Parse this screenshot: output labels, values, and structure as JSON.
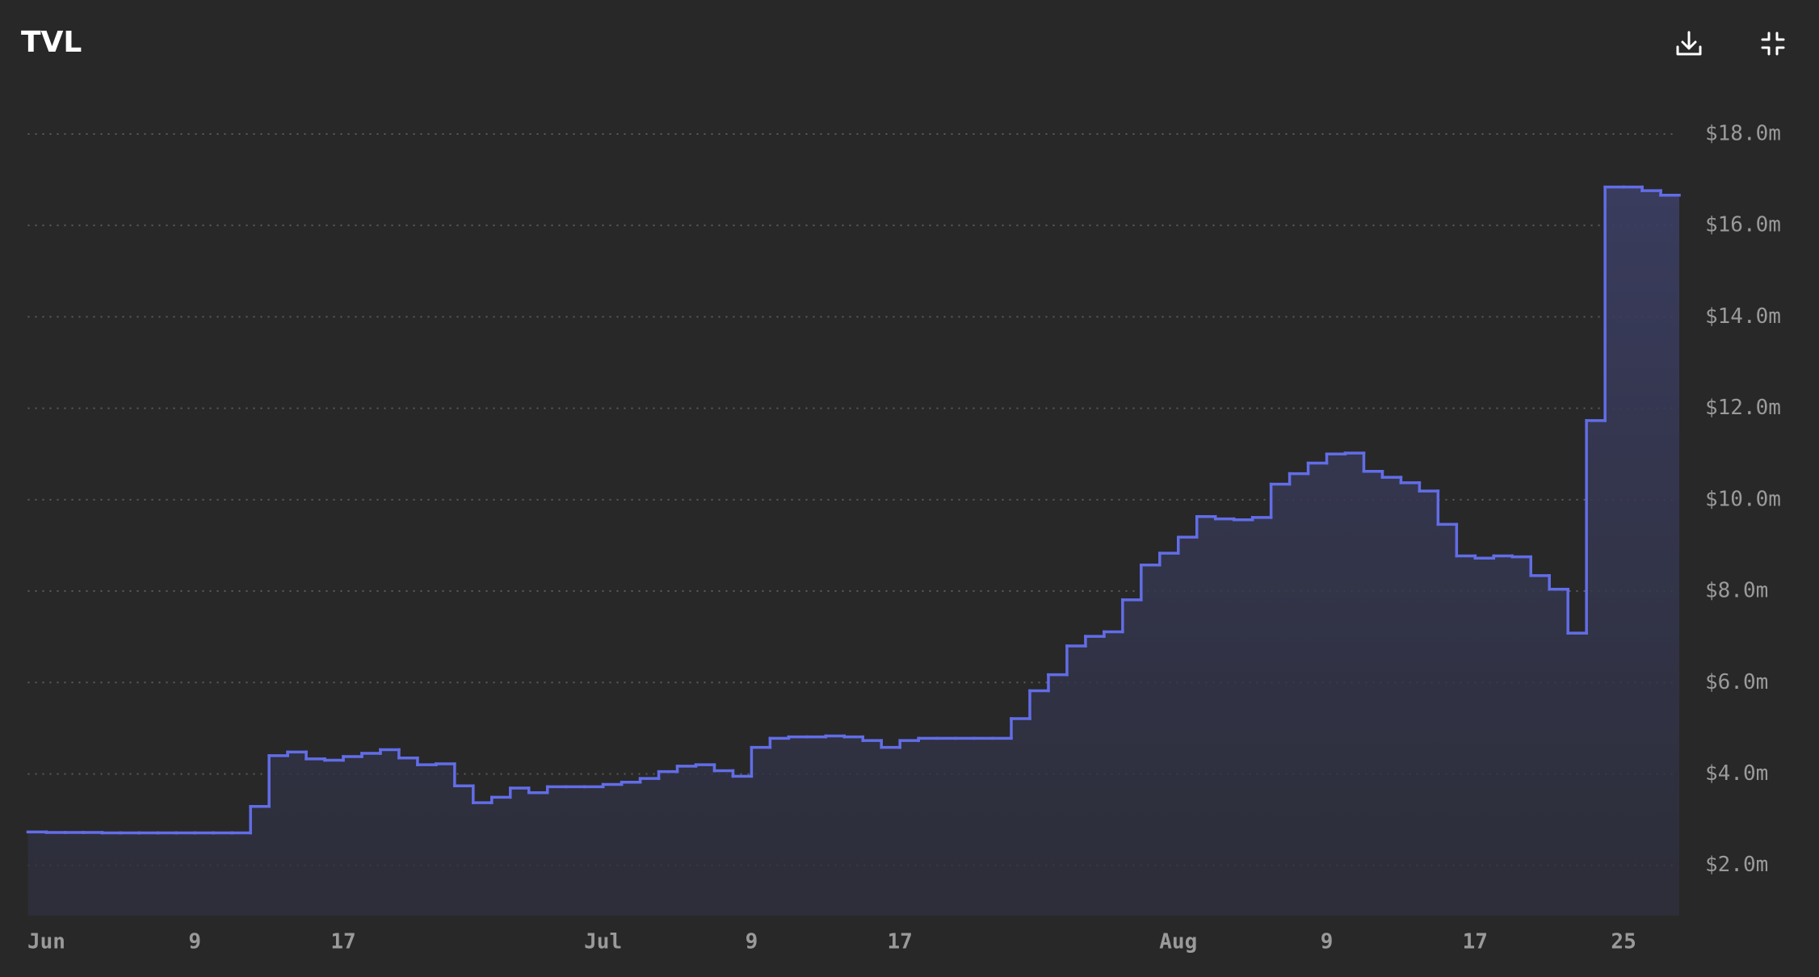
{
  "chart_data": {
    "type": "line",
    "step": "after",
    "title": "TVL",
    "color": "#626de6",
    "grid": true,
    "x": [
      "05-31",
      "06-01",
      "06-02",
      "06-03",
      "06-04",
      "06-05",
      "06-06",
      "06-07",
      "06-08",
      "06-09",
      "06-10",
      "06-11",
      "06-12",
      "06-13",
      "06-14",
      "06-15",
      "06-16",
      "06-17",
      "06-18",
      "06-19",
      "06-20",
      "06-21",
      "06-22",
      "06-23",
      "06-24",
      "06-25",
      "06-26",
      "06-27",
      "06-28",
      "06-29",
      "06-30",
      "07-01",
      "07-02",
      "07-03",
      "07-04",
      "07-05",
      "07-06",
      "07-07",
      "07-08",
      "07-09",
      "07-10",
      "07-11",
      "07-12",
      "07-13",
      "07-14",
      "07-15",
      "07-16",
      "07-17",
      "07-18",
      "07-19",
      "07-20",
      "07-21",
      "07-22",
      "07-23",
      "07-24",
      "07-25",
      "07-26",
      "07-27",
      "07-28",
      "07-29",
      "07-30",
      "07-31",
      "08-01",
      "08-02",
      "08-03",
      "08-04",
      "08-05",
      "08-06",
      "08-07",
      "08-08",
      "08-09",
      "08-10",
      "08-11",
      "08-12",
      "08-13",
      "08-14",
      "08-15",
      "08-16",
      "08-17",
      "08-18",
      "08-19",
      "08-20",
      "08-21",
      "08-22",
      "08-23",
      "08-24",
      "08-25",
      "08-26",
      "08-27"
    ],
    "values": [
      2.73,
      2.72,
      2.72,
      2.72,
      2.71,
      2.71,
      2.71,
      2.71,
      2.71,
      2.71,
      2.71,
      2.71,
      3.29,
      4.4,
      4.48,
      4.33,
      4.3,
      4.38,
      4.45,
      4.53,
      4.35,
      4.2,
      4.22,
      3.74,
      3.37,
      3.49,
      3.69,
      3.59,
      3.72,
      3.72,
      3.72,
      3.77,
      3.82,
      3.9,
      4.05,
      4.17,
      4.2,
      4.07,
      3.95,
      4.58,
      4.78,
      4.81,
      4.81,
      4.83,
      4.81,
      4.73,
      4.58,
      4.73,
      4.78,
      4.78,
      4.78,
      4.78,
      4.78,
      5.21,
      5.82,
      6.17,
      6.8,
      7.01,
      7.11,
      7.81,
      8.57,
      8.83,
      9.18,
      9.63,
      9.58,
      9.56,
      9.61,
      10.34,
      10.57,
      10.8,
      11.0,
      11.02,
      10.62,
      10.49,
      10.37,
      10.19,
      9.46,
      8.77,
      8.72,
      8.77,
      8.75,
      8.34,
      8.04,
      7.08,
      11.73,
      16.84,
      16.84,
      16.76,
      16.66
    ],
    "xlim": [
      "05-31",
      "08-28"
    ],
    "xticks": [
      {
        "value": "06-01",
        "label": "Jun"
      },
      {
        "value": "06-09",
        "label": "9"
      },
      {
        "value": "06-17",
        "label": "17"
      },
      {
        "value": "07-01",
        "label": "Jul"
      },
      {
        "value": "07-09",
        "label": "9"
      },
      {
        "value": "07-17",
        "label": "17"
      },
      {
        "value": "08-01",
        "label": "Aug"
      },
      {
        "value": "08-09",
        "label": "9"
      },
      {
        "value": "08-17",
        "label": "17"
      },
      {
        "value": "08-25",
        "label": "25"
      }
    ],
    "ylim": [
      0.9,
      18.9
    ],
    "yticks": [
      {
        "value": 2,
        "label": "$2.0m"
      },
      {
        "value": 4,
        "label": "$4.0m"
      },
      {
        "value": 6,
        "label": "$6.0m"
      },
      {
        "value": 8,
        "label": "$8.0m"
      },
      {
        "value": 10,
        "label": "$10.0m"
      },
      {
        "value": 12,
        "label": "$12.0m"
      },
      {
        "value": 14,
        "label": "$14.0m"
      },
      {
        "value": 16,
        "label": "$16.0m"
      },
      {
        "value": 18,
        "label": "$18.0m"
      }
    ]
  }
}
